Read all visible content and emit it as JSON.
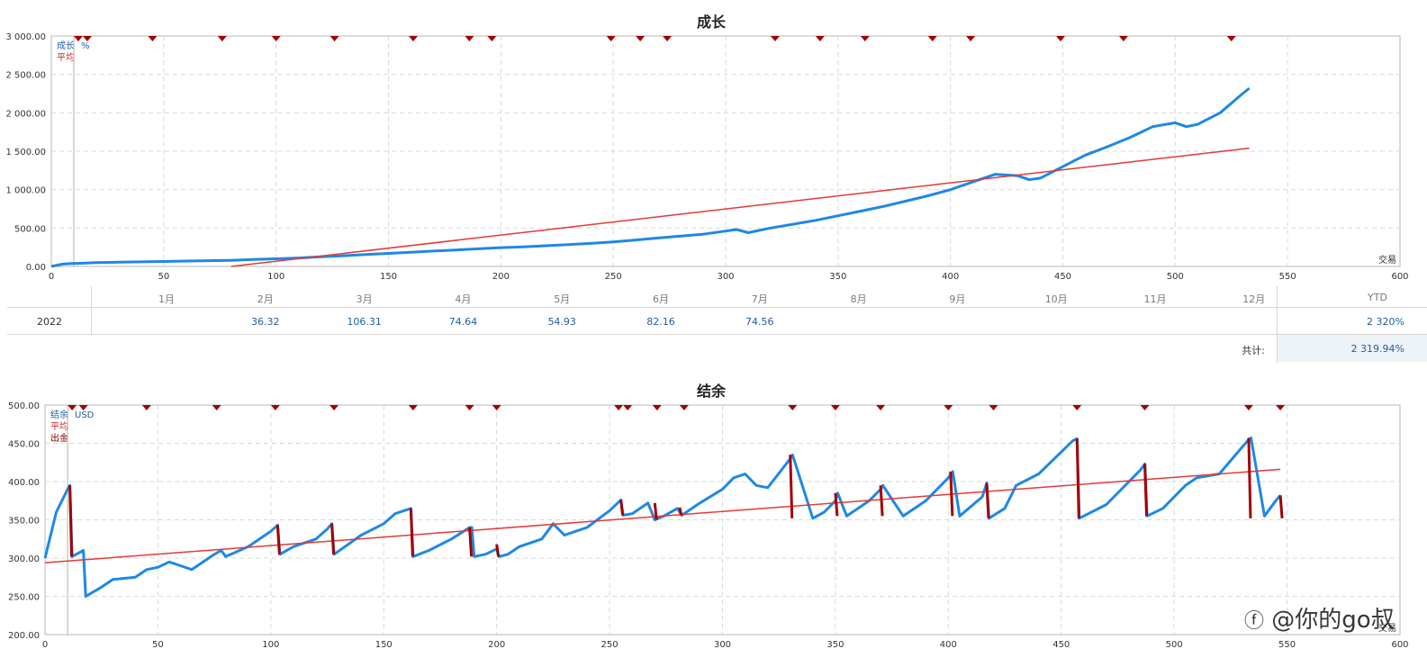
{
  "growth_chart": {
    "chart_data": {
      "type": "line",
      "title": "成长",
      "xlabel": "交易",
      "unit_label": "%",
      "legend": [
        "成长",
        "平均"
      ],
      "xlim": [
        0,
        600
      ],
      "ylim": [
        0,
        3000
      ],
      "x_ticks": [
        0,
        50,
        100,
        150,
        200,
        250,
        300,
        350,
        400,
        450,
        500,
        550,
        600
      ],
      "y_ticks": [
        "0.00",
        "500.00",
        "1 000.00",
        "1 500.00",
        "2 000.00",
        "2 500.00",
        "3 000.00"
      ],
      "y_tick_values": [
        0,
        500,
        1000,
        1500,
        2000,
        2500,
        3000
      ],
      "grid": true,
      "series": [
        {
          "name": "成长",
          "color": "#1e88e5",
          "x": [
            0,
            5,
            10,
            12,
            20,
            30,
            40,
            50,
            60,
            70,
            80,
            90,
            100,
            110,
            120,
            130,
            140,
            150,
            160,
            170,
            180,
            190,
            200,
            210,
            220,
            230,
            240,
            250,
            260,
            270,
            280,
            290,
            300,
            305,
            310,
            320,
            330,
            340,
            350,
            360,
            370,
            380,
            390,
            400,
            410,
            420,
            430,
            435,
            440,
            450,
            460,
            470,
            480,
            490,
            500,
            505,
            510,
            520,
            530,
            533
          ],
          "y": [
            0,
            30,
            40,
            40,
            50,
            55,
            60,
            65,
            70,
            75,
            80,
            90,
            100,
            110,
            125,
            140,
            155,
            170,
            185,
            200,
            215,
            230,
            245,
            255,
            270,
            285,
            300,
            320,
            345,
            370,
            395,
            420,
            460,
            480,
            440,
            500,
            550,
            600,
            660,
            720,
            780,
            850,
            920,
            1000,
            1100,
            1200,
            1180,
            1130,
            1150,
            1300,
            1450,
            1560,
            1680,
            1820,
            1870,
            1820,
            1850,
            2000,
            2250,
            2320
          ]
        },
        {
          "name": "平均",
          "color": "#e53935",
          "x": [
            80,
            533
          ],
          "y": [
            0,
            1540
          ]
        }
      ],
      "markers_x": [
        12,
        16,
        45,
        76,
        100,
        126,
        161,
        186,
        196,
        249,
        262,
        274,
        322,
        342,
        362,
        392,
        409,
        449,
        477,
        525
      ]
    },
    "table": {
      "months": [
        "1月",
        "2月",
        "3月",
        "4月",
        "5月",
        "6月",
        "7月",
        "8月",
        "9月",
        "10月",
        "11月",
        "12月"
      ],
      "ytd_header": "YTD",
      "year": "2022",
      "values": [
        "",
        "36.32",
        "106.31",
        "74.64",
        "54.93",
        "82.16",
        "74.56",
        "",
        "",
        "",
        "",
        ""
      ],
      "ytd_value": "2 320%",
      "total_label": "共计:",
      "total_value": "2 319.94%"
    }
  },
  "balance_chart": {
    "chart_data": {
      "type": "line",
      "title": "结余",
      "xlabel": "交易",
      "unit_label": "USD",
      "legend": [
        "结余",
        "平均",
        "出金"
      ],
      "xlim": [
        0,
        600
      ],
      "ylim": [
        200,
        500
      ],
      "x_ticks": [
        0,
        50,
        100,
        150,
        200,
        250,
        300,
        350,
        400,
        450,
        500,
        550,
        600
      ],
      "y_ticks": [
        "200.00",
        "250.00",
        "300.00",
        "350.00",
        "400.00",
        "450.00",
        "500.00"
      ],
      "y_tick_values": [
        200,
        250,
        300,
        350,
        400,
        450,
        500
      ],
      "grid": true,
      "series": [
        {
          "name": "结余",
          "color": "#1e88e5",
          "x": [
            0,
            5,
            10,
            11,
            12,
            17,
            18,
            25,
            30,
            40,
            45,
            50,
            55,
            60,
            65,
            70,
            75,
            78,
            80,
            90,
            95,
            100,
            103,
            104,
            110,
            120,
            125,
            127,
            128,
            140,
            150,
            155,
            162,
            163,
            170,
            180,
            188,
            189,
            190,
            195,
            200,
            201,
            205,
            210,
            220,
            225,
            230,
            240,
            250,
            255,
            256,
            260,
            267,
            270,
            274,
            280,
            282,
            290,
            300,
            305,
            310,
            315,
            320,
            330,
            331,
            340,
            345,
            350,
            351,
            355,
            365,
            370,
            371,
            380,
            390,
            400,
            402,
            405,
            415,
            417,
            418,
            425,
            430,
            440,
            455,
            457,
            458,
            470,
            485,
            487,
            488,
            495,
            505,
            510,
            520,
            533,
            534,
            540,
            545,
            547
          ],
          "y": [
            300,
            360,
            390,
            395,
            302,
            310,
            250,
            262,
            272,
            275,
            285,
            288,
            295,
            290,
            285,
            295,
            305,
            310,
            302,
            315,
            325,
            335,
            343,
            305,
            315,
            325,
            338,
            345,
            305,
            330,
            345,
            358,
            365,
            302,
            310,
            325,
            340,
            340,
            302,
            305,
            312,
            302,
            305,
            315,
            325,
            345,
            330,
            340,
            362,
            376,
            356,
            358,
            372,
            350,
            355,
            365,
            356,
            372,
            390,
            405,
            410,
            395,
            392,
            430,
            435,
            352,
            360,
            375,
            385,
            355,
            375,
            390,
            395,
            355,
            375,
            405,
            413,
            355,
            380,
            398,
            352,
            365,
            395,
            410,
            453,
            456,
            352,
            370,
            415,
            423,
            355,
            365,
            395,
            405,
            410,
            455,
            457,
            355,
            375,
            382
          ]
        },
        {
          "name": "平均",
          "color": "#e53935",
          "x": [
            0,
            547
          ],
          "y": [
            294,
            416
          ]
        },
        {
          "name": "出金",
          "color": "#a30000",
          "drops": [
            [
              11,
              395,
              302
            ],
            [
              103,
              343,
              305
            ],
            [
              127,
              345,
              305
            ],
            [
              162,
              365,
              302
            ],
            [
              188,
              340,
              302
            ],
            [
              200,
              318,
              302
            ],
            [
              255,
              376,
              356
            ],
            [
              270,
              372,
              350
            ],
            [
              281,
              366,
              356
            ],
            [
              330,
              435,
              352
            ],
            [
              350,
              385,
              355
            ],
            [
              370,
              395,
              355
            ],
            [
              401,
              413,
              355
            ],
            [
              417,
              398,
              352
            ],
            [
              457,
              456,
              352
            ],
            [
              487,
              423,
              355
            ],
            [
              533,
              457,
              352
            ],
            [
              547,
              382,
              352
            ]
          ]
        }
      ],
      "markers_x": [
        12,
        17,
        45,
        76,
        102,
        128,
        163,
        188,
        200,
        254,
        258,
        271,
        283,
        331,
        350,
        370,
        400,
        420,
        457,
        487,
        533,
        547
      ]
    }
  },
  "watermark": "@你的go叔"
}
